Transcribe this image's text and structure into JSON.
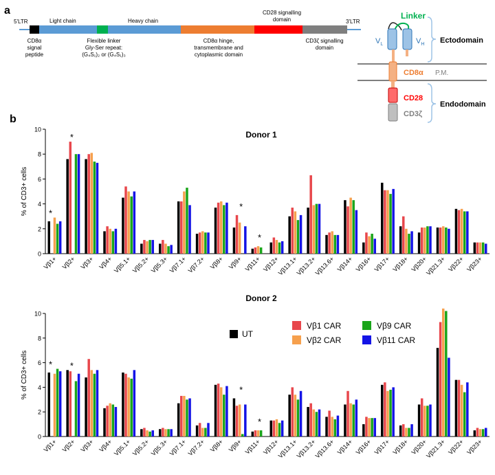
{
  "panel_a": {
    "label": "a",
    "ltr5": "5'LTR",
    "ltr3": "3'LTR",
    "light_chain": "Light chain",
    "heavy_chain": "Heavy chain",
    "cd28_label_1": "CD28 signalling",
    "cd28_label_2": "domain",
    "signal_peptide_1": "CD8α",
    "signal_peptide_2": "signal",
    "signal_peptide_3": "peptide",
    "linker_1": "Flexible linker",
    "linker_2": "Gly-Ser repeat:",
    "linker_3": "(G₄S₁)₂ or (G₄S₁)₃",
    "hinge_1": "CD8α hinge,",
    "hinge_2": "transmembrane and",
    "hinge_3": "cytoplasmic domain",
    "cd3z_1": "CD3ζ signalling",
    "cd3z_2": "domain",
    "schematic": {
      "linker": "Linker",
      "vl": "V",
      "vl_sub": "L",
      "vh": "V",
      "vh_sub": "H",
      "ectodomain": "Ectodomain",
      "cd8a": "CD8α",
      "pm": "P.M.",
      "cd28": "CD28",
      "cd3z": "CD3ζ",
      "endodomain": "Endodomain"
    },
    "colors": {
      "signal": "#000000",
      "light": "#5b9bd5",
      "linker": "#00b050",
      "heavy": "#5b9bd5",
      "hinge": "#ed7d31",
      "cd28": "#ff0000",
      "cd3z": "#7f7f7f",
      "backbone": "#5b9bd5"
    }
  },
  "panel_b_label": "b",
  "legend": {
    "ut": "UT",
    "vb1": "Vβ1 CAR",
    "vb2": "Vβ2 CAR",
    "vb9": "Vβ9 CAR",
    "vb11": "Vβ11 CAR"
  },
  "chart_data": [
    {
      "type": "bar",
      "title": "Donor 1",
      "ylabel": "% of CD3+ cells",
      "ylim": [
        0,
        10
      ],
      "yticks": [
        "0",
        "2",
        "4",
        "6",
        "8",
        "10"
      ],
      "categories": [
        "Vβ1+",
        "Vβ2+",
        "Vβ3+",
        "Vβ4+",
        "Vβ5.1+",
        "Vβ5.2+",
        "Vβ5.3+",
        "Vβ7.1+",
        "Vβ7.2+",
        "Vβ8+",
        "Vβ9+",
        "Vβ11+",
        "Vβ12+",
        "Vβ13.1+",
        "Vβ13.2+",
        "Vβ13.6+",
        "Vβ14+",
        "Vβ16+",
        "Vβ17+",
        "Vβ18+",
        "Vβ20+",
        "Vβ21.3+",
        "Vβ22+",
        "Vβ23+"
      ],
      "series": [
        {
          "name": "UT",
          "color": "#000000",
          "values": [
            2.6,
            7.6,
            7.6,
            1.8,
            4.5,
            0.8,
            0.8,
            4.2,
            1.6,
            3.7,
            2.1,
            0.4,
            0.9,
            3.0,
            3.7,
            1.5,
            4.3,
            0.9,
            5.7,
            2.2,
            1.7,
            2.1,
            3.6,
            0.9
          ]
        },
        {
          "name": "Vβ1 CAR",
          "color": "#e8474c",
          "values": [
            0.0,
            9.0,
            8.0,
            2.2,
            5.4,
            1.1,
            1.1,
            4.2,
            1.7,
            4.1,
            3.1,
            0.5,
            1.3,
            3.7,
            6.3,
            1.7,
            3.8,
            1.7,
            5.1,
            3.0,
            2.1,
            2.1,
            3.5,
            0.9
          ]
        },
        {
          "name": "Vβ2 CAR",
          "color": "#f6a04d",
          "values": [
            2.9,
            0.0,
            8.1,
            2.0,
            5.0,
            1.0,
            0.8,
            5.0,
            1.8,
            4.2,
            2.5,
            0.6,
            1.1,
            3.4,
            3.9,
            1.8,
            4.5,
            1.4,
            5.1,
            2.0,
            2.1,
            2.2,
            3.6,
            0.9
          ]
        },
        {
          "name": "Vβ9 CAR",
          "color": "#1aa51a",
          "values": [
            2.4,
            8.0,
            7.4,
            1.8,
            4.6,
            1.1,
            0.6,
            5.3,
            1.7,
            3.9,
            0.0,
            0.5,
            0.9,
            2.7,
            4.0,
            1.5,
            4.3,
            1.6,
            4.8,
            1.6,
            2.2,
            2.1,
            3.4,
            0.9
          ]
        },
        {
          "name": "Vβ11 CAR",
          "color": "#1414e6",
          "values": [
            2.6,
            8.0,
            7.3,
            2.0,
            5.0,
            1.1,
            0.7,
            3.9,
            1.7,
            4.1,
            2.2,
            0.0,
            1.0,
            3.1,
            4.0,
            1.5,
            3.5,
            1.2,
            5.2,
            1.8,
            2.2,
            2.0,
            3.4,
            0.8
          ]
        }
      ],
      "stars": [
        "Vβ1+",
        "Vβ2+",
        "Vβ9+",
        "Vβ11+"
      ]
    },
    {
      "type": "bar",
      "title": "Donor 2",
      "ylabel": "% of CD3+ cells",
      "ylim": [
        0,
        10
      ],
      "yticks": [
        "0",
        "2",
        "4",
        "6",
        "8",
        "10"
      ],
      "categories": [
        "Vβ1+",
        "Vβ2+",
        "Vβ3+",
        "Vβ4+",
        "Vβ5.1+",
        "Vβ5.2+",
        "Vβ5.3+",
        "Vβ7.1+",
        "Vβ7.2+",
        "Vβ8+",
        "Vβ9+",
        "Vβ11+",
        "Vβ12+",
        "Vβ13.1+",
        "Vβ13.2+",
        "Vβ13.6+",
        "Vβ14+",
        "Vβ16+",
        "Vβ17+",
        "Vβ18+",
        "Vβ20+",
        "Vβ21.3+",
        "Vβ22+",
        "Vβ23+"
      ],
      "series": [
        {
          "name": "UT",
          "color": "#000000",
          "values": [
            5.2,
            5.4,
            4.8,
            2.3,
            5.2,
            0.6,
            0.6,
            2.7,
            0.9,
            4.2,
            3.1,
            0.4,
            1.3,
            3.4,
            2.4,
            1.6,
            2.6,
            1.0,
            4.2,
            0.9,
            2.6,
            7.2,
            4.6,
            0.5
          ]
        },
        {
          "name": "Vβ1 CAR",
          "color": "#e8474c",
          "values": [
            0.0,
            5.3,
            6.3,
            2.5,
            5.1,
            0.7,
            0.7,
            3.3,
            1.1,
            4.3,
            2.5,
            0.5,
            1.3,
            4.0,
            2.7,
            2.1,
            3.7,
            1.6,
            4.4,
            1.0,
            3.1,
            9.3,
            4.6,
            0.7
          ]
        },
        {
          "name": "Vβ2 CAR",
          "color": "#f6a04d",
          "values": [
            5.1,
            0.0,
            5.4,
            2.7,
            4.8,
            0.5,
            0.6,
            3.3,
            0.7,
            4.0,
            2.6,
            0.5,
            1.4,
            3.4,
            2.2,
            1.6,
            2.7,
            1.5,
            3.7,
            0.7,
            2.5,
            10.4,
            4.2,
            0.6
          ]
        },
        {
          "name": "Vβ9 CAR",
          "color": "#1aa51a",
          "values": [
            5.5,
            4.5,
            5.1,
            2.6,
            4.7,
            0.4,
            0.6,
            3.0,
            0.7,
            3.4,
            0.2,
            0.5,
            1.1,
            3.0,
            2.0,
            1.4,
            2.6,
            1.5,
            3.8,
            0.7,
            2.5,
            10.2,
            3.6,
            0.6
          ]
        },
        {
          "name": "Vβ11 CAR",
          "color": "#1414e6",
          "values": [
            5.3,
            5.1,
            5.4,
            2.4,
            5.4,
            0.5,
            0.6,
            3.1,
            1.1,
            4.1,
            2.6,
            0.0,
            1.3,
            3.7,
            2.2,
            1.7,
            3.0,
            1.5,
            4.0,
            1.0,
            2.6,
            6.4,
            4.4,
            0.7
          ]
        }
      ],
      "stars": [
        "Vβ1+",
        "Vβ2+",
        "Vβ9+",
        "Vβ11+"
      ]
    }
  ]
}
